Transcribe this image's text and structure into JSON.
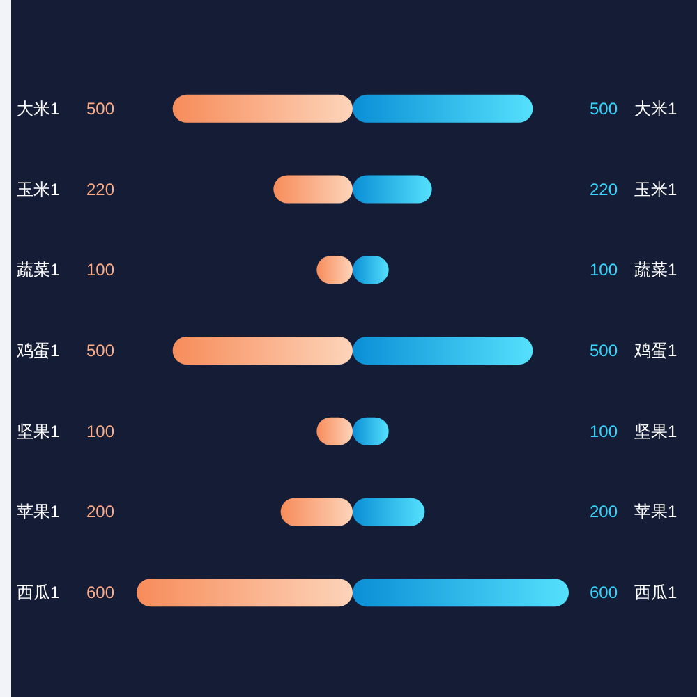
{
  "chart_data": [
    {
      "type": "bar",
      "orientation": "horizontal",
      "categories": [
        "大米1",
        "玉米1",
        "蔬菜1",
        "鸡蛋1",
        "坚果1",
        "苹果1",
        "西瓜1"
      ],
      "values": [
        500,
        220,
        100,
        500,
        100,
        200,
        600
      ],
      "color": "#f78c5a",
      "xlim": [
        600,
        0
      ],
      "data_labels": true
    },
    {
      "type": "bar",
      "orientation": "horizontal",
      "categories": [
        "大米1",
        "玉米1",
        "蔬菜1",
        "鸡蛋1",
        "坚果1",
        "苹果1",
        "西瓜1"
      ],
      "values": [
        500,
        220,
        100,
        500,
        100,
        200,
        600
      ],
      "color": "#0a8fd6",
      "xlim": [
        0,
        600
      ],
      "data_labels": true
    }
  ]
}
